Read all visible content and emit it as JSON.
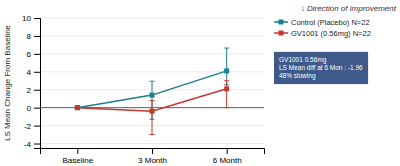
{
  "chart_data": {
    "type": "line",
    "ylabel": "LS Mean Change From Baseline",
    "categories": [
      "Baseline",
      "3 Month",
      "6 Month"
    ],
    "series": [
      {
        "name": "Control (Placebo) N=22",
        "color": "#1a7f8e",
        "marker": "square",
        "values": [
          0,
          1.4,
          4.1
        ],
        "error_low": [
          0,
          2.7,
          1.55
        ],
        "error_high": [
          0,
          1.55,
          2.55
        ]
      },
      {
        "name": "GV1001 (0.56mg) N=22",
        "color": "#c0392b",
        "marker": "square",
        "values": [
          0,
          -0.4,
          2.1
        ],
        "error_low": [
          0,
          2.6,
          2.1
        ],
        "error_high": [
          0,
          1.2,
          0.9
        ]
      }
    ],
    "ylim": [
      -4.5,
      10
    ],
    "yticks": [
      -4,
      -2,
      0,
      2,
      4,
      6,
      8,
      10
    ],
    "grid": true,
    "legend": "right",
    "annotations": [
      "↓ Direction of improvement",
      "GV1001 0.56mg\nLS Mean diff at 6 Mon : -1.96\n48% slowing"
    ]
  }
}
